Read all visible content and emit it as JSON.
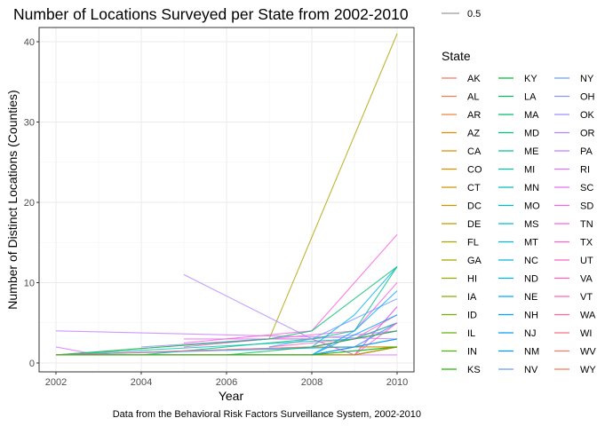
{
  "chart_data": {
    "type": "line",
    "title": "Number of Locations Surveyed per State from 2002-2010",
    "xlabel": "Year",
    "ylabel": "Number of Distinct Locations (Counties)",
    "caption": "Data from the Behavioral Risk Factors Surveillance System, 2002-2010",
    "xlim": [
      2002,
      2010
    ],
    "ylim": [
      0,
      42
    ],
    "x_ticks": [
      2002,
      2004,
      2006,
      2008,
      2010
    ],
    "y_ticks": [
      0,
      10,
      20,
      30,
      40
    ],
    "grid": true,
    "size_legend": {
      "label": "0.5"
    },
    "legend": {
      "title": "State",
      "placement": "right",
      "columns": [
        [
          "AK",
          "AL",
          "AR",
          "AZ",
          "CA",
          "CO",
          "CT",
          "DC",
          "DE",
          "FL",
          "GA",
          "HI",
          "IA",
          "ID",
          "IL",
          "IN",
          "KS"
        ],
        [
          "KY",
          "LA",
          "MA",
          "MD",
          "ME",
          "MI",
          "MN",
          "MO",
          "MS",
          "MT",
          "NC",
          "ND",
          "NE",
          "NH",
          "NJ",
          "NM",
          "NV"
        ],
        [
          "NY",
          "OH",
          "OK",
          "OR",
          "PA",
          "RI",
          "SC",
          "SD",
          "TN",
          "TX",
          "UT",
          "VA",
          "VT",
          "WA",
          "WI",
          "WV",
          "WY"
        ]
      ]
    },
    "colors": {
      "AK": "#F8766D",
      "AL": "#F37B59",
      "AR": "#ED813E",
      "AZ": "#E58700",
      "CA": "#DE8C00",
      "CO": "#D89000",
      "CT": "#CF9400",
      "DC": "#C49A00",
      "DE": "#BB9D00",
      "FL": "#B0A100",
      "GA": "#A3A500",
      "HI": "#95A900",
      "IA": "#86AC00",
      "ID": "#76AF00",
      "IL": "#64B200",
      "IN": "#4CB501",
      "KS": "#1CB800",
      "KY": "#00BA38",
      "LA": "#00BC59",
      "MA": "#00BE70",
      "MD": "#00BF82",
      "ME": "#00C094",
      "MI": "#00C1A3",
      "MN": "#00C0B3",
      "MO": "#00BFC2",
      "MS": "#00BDD0",
      "MT": "#00BADC",
      "NC": "#00B6E7",
      "ND": "#00B1F2",
      "NE": "#00ABFD",
      "NH": "#00A5FF",
      "NJ": "#009DFF",
      "NM": "#0095FF",
      "NV": "#619CFF",
      "NY": "#6E9EFF",
      "OH": "#8795FF",
      "OK": "#9C8DFF",
      "OR": "#B085FF",
      "PA": "#C77CFF",
      "RI": "#D874FD",
      "SC": "#E66CF4",
      "SD": "#F066EA",
      "TN": "#F962DD",
      "TX": "#FD61D1",
      "UT": "#FF61C4",
      "VA": "#FF63B6",
      "VT": "#FF66A8",
      "WA": "#FF6A98",
      "WI": "#FD6F86",
      "WV": "#F8766D",
      "WY": "#F27D52"
    },
    "series": [
      {
        "state": "FL",
        "points": [
          [
            2002,
            1
          ],
          [
            2007,
            3
          ],
          [
            2010,
            41
          ]
        ]
      },
      {
        "state": "OR",
        "points": [
          [
            2005,
            11
          ],
          [
            2008,
            3
          ],
          [
            2010,
            4
          ]
        ]
      },
      {
        "state": "PA",
        "points": [
          [
            2002,
            4
          ],
          [
            2010,
            3
          ]
        ]
      },
      {
        "state": "RI",
        "points": [
          [
            2002,
            2
          ],
          [
            2003,
            1
          ],
          [
            2010,
            1
          ]
        ]
      },
      {
        "state": "OK",
        "points": [
          [
            2004,
            2
          ],
          [
            2007,
            3
          ],
          [
            2008,
            3
          ],
          [
            2009,
            1
          ],
          [
            2010,
            7
          ]
        ]
      },
      {
        "state": "SC",
        "points": [
          [
            2005,
            3
          ],
          [
            2008,
            3
          ],
          [
            2009,
            1
          ],
          [
            2010,
            7
          ]
        ]
      },
      {
        "state": "TN",
        "points": [
          [
            2005,
            2.5
          ],
          [
            2008,
            4
          ],
          [
            2010,
            16
          ]
        ]
      },
      {
        "state": "TX",
        "points": [
          [
            2005,
            2
          ],
          [
            2009,
            4
          ],
          [
            2010,
            10
          ]
        ]
      },
      {
        "state": "MA",
        "points": [
          [
            2002,
            1
          ],
          [
            2007,
            3
          ],
          [
            2008,
            4
          ],
          [
            2010,
            12
          ]
        ]
      },
      {
        "state": "NC",
        "points": [
          [
            2008,
            2
          ],
          [
            2009,
            6
          ],
          [
            2010,
            12
          ]
        ]
      },
      {
        "state": "VA",
        "points": [
          [
            2007,
            2
          ],
          [
            2009,
            3
          ],
          [
            2010,
            6
          ]
        ]
      },
      {
        "state": "WA",
        "points": [
          [
            2008,
            2
          ],
          [
            2009,
            3
          ],
          [
            2010,
            5
          ]
        ]
      },
      {
        "state": "NJ",
        "points": [
          [
            2003,
            1
          ],
          [
            2008,
            1
          ],
          [
            2010,
            6
          ]
        ]
      },
      {
        "state": "MD",
        "points": [
          [
            2004,
            1
          ],
          [
            2008,
            3
          ],
          [
            2009,
            4
          ],
          [
            2010,
            12
          ]
        ]
      },
      {
        "state": "NY",
        "points": [
          [
            2007,
            2
          ],
          [
            2008,
            3
          ],
          [
            2010,
            8
          ]
        ]
      },
      {
        "state": "CO",
        "points": [
          [
            2002,
            1
          ],
          [
            2008,
            1
          ],
          [
            2009,
            2
          ],
          [
            2010,
            2
          ]
        ]
      },
      {
        "state": "AZ",
        "points": [
          [
            2008,
            2
          ],
          [
            2009,
            2
          ],
          [
            2010,
            2
          ]
        ]
      },
      {
        "state": "DE",
        "points": [
          [
            2002,
            1
          ],
          [
            2009,
            1
          ],
          [
            2010,
            2
          ]
        ]
      },
      {
        "state": "GA",
        "points": [
          [
            2002,
            1
          ],
          [
            2008,
            2
          ],
          [
            2010,
            4
          ]
        ]
      },
      {
        "state": "MI",
        "points": [
          [
            2006,
            1
          ],
          [
            2008,
            1
          ],
          [
            2010,
            2
          ]
        ]
      },
      {
        "state": "MO",
        "points": [
          [
            2003,
            1
          ],
          [
            2008,
            1
          ],
          [
            2010,
            3
          ]
        ]
      },
      {
        "state": "MN",
        "points": [
          [
            2002,
            1
          ],
          [
            2009,
            3
          ],
          [
            2010,
            5
          ]
        ]
      },
      {
        "state": "NE",
        "points": [
          [
            2008,
            1
          ],
          [
            2009,
            4
          ],
          [
            2010,
            9
          ]
        ]
      },
      {
        "state": "NH",
        "points": [
          [
            2002,
            1
          ],
          [
            2009,
            2
          ],
          [
            2010,
            5
          ]
        ]
      },
      {
        "state": "OH",
        "points": [
          [
            2002,
            1
          ],
          [
            2008,
            1
          ],
          [
            2009,
            2
          ],
          [
            2010,
            5
          ]
        ]
      },
      {
        "state": "VT",
        "points": [
          [
            2002,
            1
          ],
          [
            2008,
            2
          ],
          [
            2009,
            3
          ],
          [
            2010,
            4
          ]
        ]
      },
      {
        "state": "UT",
        "points": [
          [
            2008,
            1
          ],
          [
            2009,
            1
          ],
          [
            2010,
            5
          ]
        ]
      },
      {
        "state": "LA",
        "points": [
          [
            2006,
            1
          ],
          [
            2008,
            2
          ],
          [
            2010,
            4
          ]
        ]
      },
      {
        "state": "IL",
        "points": [
          [
            2008,
            1
          ],
          [
            2009,
            1
          ],
          [
            2010,
            2
          ]
        ]
      },
      {
        "state": "ID",
        "points": [
          [
            2008,
            1
          ],
          [
            2009,
            1
          ],
          [
            2010,
            2
          ]
        ]
      },
      {
        "state": "CA",
        "points": [
          [
            2002,
            1
          ],
          [
            2009,
            1
          ],
          [
            2010,
            2
          ]
        ]
      },
      {
        "state": "NM",
        "points": [
          [
            2008,
            1
          ],
          [
            2009,
            2
          ],
          [
            2010,
            3
          ]
        ]
      },
      {
        "state": "KS",
        "points": [
          [
            2002,
            1
          ],
          [
            2008,
            1
          ],
          [
            2010,
            2
          ]
        ]
      }
    ]
  }
}
